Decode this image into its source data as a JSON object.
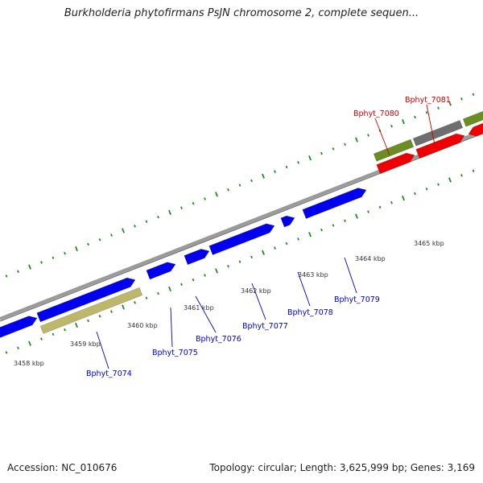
{
  "header": {
    "title": "Burkholderia phytofirmans PsJN chromosome 2, complete sequen..."
  },
  "footer": {
    "accession": "Accession: NC_010676",
    "summary": "Topology: circular; Length: 3,625,999 bp; Genes: 3,169"
  },
  "colors": {
    "forward_gene": "#0000ee",
    "reverse_gene": "#ee0000",
    "forward_label": "#0000cc",
    "reverse_label": "#cc0000",
    "olive_feature": "#6b8e23",
    "tan_feature": "#bdb76b",
    "gray_feature": "#6e6e6e",
    "backbone": "#888888",
    "tick": "#228b22"
  },
  "ticks": [
    {
      "label": "3458 kbp"
    },
    {
      "label": "3459 kbp"
    },
    {
      "label": "3460 kbp"
    },
    {
      "label": "3461 kbp"
    },
    {
      "label": "3462 kbp"
    },
    {
      "label": "3463 kbp"
    },
    {
      "label": "3464 kbp"
    },
    {
      "label": "3465 kbp"
    }
  ],
  "genes": [
    {
      "name": "Bphyt_7074",
      "strand": "forward"
    },
    {
      "name": "Bphyt_7075",
      "strand": "forward"
    },
    {
      "name": "Bphyt_7076",
      "strand": "forward"
    },
    {
      "name": "Bphyt_7077",
      "strand": "forward"
    },
    {
      "name": "Bphyt_7078",
      "strand": "forward"
    },
    {
      "name": "Bphyt_7079",
      "strand": "forward"
    },
    {
      "name": "Bphyt_7080",
      "strand": "reverse"
    },
    {
      "name": "Bphyt_7081",
      "strand": "reverse"
    }
  ]
}
